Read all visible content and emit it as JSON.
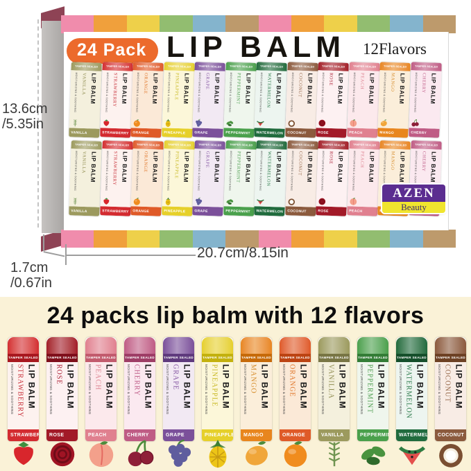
{
  "box": {
    "badge": "24 Pack",
    "title": "LIP BALM",
    "flavors_count": "12Flavors",
    "stripe_colors": [
      "#f08cac",
      "#f0a03c",
      "#eed04a",
      "#92bd70",
      "#84b4cd",
      "#bd9a6c"
    ],
    "corner_color": "#8e4355",
    "row_order": [
      "vanilla",
      "strawberry",
      "orange",
      "pineapple",
      "grape",
      "peppermint",
      "watermelon",
      "coconut",
      "rose",
      "peach",
      "mango",
      "cherry"
    ]
  },
  "brand": {
    "name": "AZEN",
    "sub": "Beauty",
    "bg": "#5b2d90",
    "sub_bg": "#f0e52e"
  },
  "measurements": {
    "height_cm": "13.6cm",
    "height_in": "/5.35in",
    "width": "20.7cm/8.15in",
    "depth_cm": "1.7cm",
    "depth_in": "/0.67in"
  },
  "tube_common": {
    "brand_text": "LIP BALM",
    "seal_text": "TAMPER SEALED",
    "claim_text": "MOISTURIZING & SOOTHING"
  },
  "bottom": {
    "bg": "#faf2d7",
    "title": "24 packs lip balm with 12 flavors",
    "row_order": [
      "strawberry",
      "rose",
      "peach",
      "cherry",
      "grape",
      "pineapple",
      "mango",
      "orange",
      "vanilla",
      "peppermint",
      "watermelon",
      "coconut"
    ]
  },
  "flavors": {
    "vanilla": {
      "name": "VANILLA",
      "cap": "#9c9a5e",
      "band": "#787544",
      "text": "#8f8c50",
      "body": "#f4f0dd",
      "fruit": {
        "shape": "sprig",
        "main": "#6f9450",
        "accent": "#4e7a3a"
      }
    },
    "strawberry": {
      "name": "STRAWBERRY",
      "cap": "#d32b30",
      "band": "#a8181f",
      "text": "#c8323c",
      "body": "#fdf2ef",
      "fruit": {
        "shape": "berry",
        "main": "#d8262c",
        "accent": "#3f8f3f"
      }
    },
    "orange": {
      "name": "ORANGE",
      "cap": "#df5a28",
      "band": "#bc4312",
      "text": "#e0762a",
      "body": "#fbe9d7",
      "fruit": {
        "shape": "orange",
        "main": "#f08c1e",
        "accent": "#4c8c3c"
      }
    },
    "pineapple": {
      "name": "PINEAPPLE",
      "cap": "#e6d02a",
      "band": "#c3b10e",
      "text": "#c9ba25",
      "body": "#fcf7d9",
      "fruit": {
        "shape": "pineapple",
        "main": "#edc517",
        "accent": "#3e7f33"
      }
    },
    "grape": {
      "name": "GRAPE",
      "cap": "#7b509a",
      "band": "#5f3a7d",
      "text": "#885aa5",
      "body": "#f2e9f3",
      "fruit": {
        "shape": "cluster",
        "main": "#5f5d9e",
        "accent": "#4c8c3c"
      }
    },
    "peppermint": {
      "name": "PEPPERMINT",
      "cap": "#4aa04c",
      "band": "#337d36",
      "text": "#4f9f52",
      "body": "#eff6ed",
      "fruit": {
        "shape": "leaves",
        "main": "#49933f",
        "accent": "#2f6b2c"
      }
    },
    "watermelon": {
      "name": "WATERMELON",
      "cap": "#206b3d",
      "band": "#154f2b",
      "text": "#2c7a4b",
      "body": "#edf5f0",
      "fruit": {
        "shape": "wedge",
        "main": "#e4504d",
        "accent": "#2e7d43"
      }
    },
    "coconut": {
      "name": "COCONUT",
      "cap": "#8b5a3d",
      "band": "#6d4124",
      "text": "#96684a",
      "body": "#f8ece5",
      "fruit": {
        "shape": "coconut",
        "main": "#7a4e31",
        "accent": "#f5efe2"
      }
    },
    "rose": {
      "name": "ROSE",
      "cap": "#a21a28",
      "band": "#7f0f1b",
      "text": "#ab2036",
      "body": "#fdf1f2",
      "fruit": {
        "shape": "rose",
        "main": "#a01424",
        "accent": "#6f0c18"
      }
    },
    "peach": {
      "name": "PEACH",
      "cap": "#e0808f",
      "band": "#c25b6d",
      "text": "#dd8492",
      "body": "#fce9ec",
      "fruit": {
        "shape": "round",
        "main": "#f3a08b",
        "accent": "#e4685f"
      }
    },
    "mango": {
      "name": "MANGO",
      "cap": "#e8861e",
      "band": "#c66a09",
      "text": "#d68c2a",
      "body": "#fbeeda",
      "fruit": {
        "shape": "oval",
        "main": "#f0a63a",
        "accent": "#e0812a"
      }
    },
    "cherry": {
      "name": "CHERRY",
      "cap": "#bf5c85",
      "band": "#9e3d66",
      "text": "#c05f8a",
      "body": "#fbe9f0",
      "fruit": {
        "shape": "cherry",
        "main": "#8e1f38",
        "accent": "#6d1229"
      }
    }
  }
}
